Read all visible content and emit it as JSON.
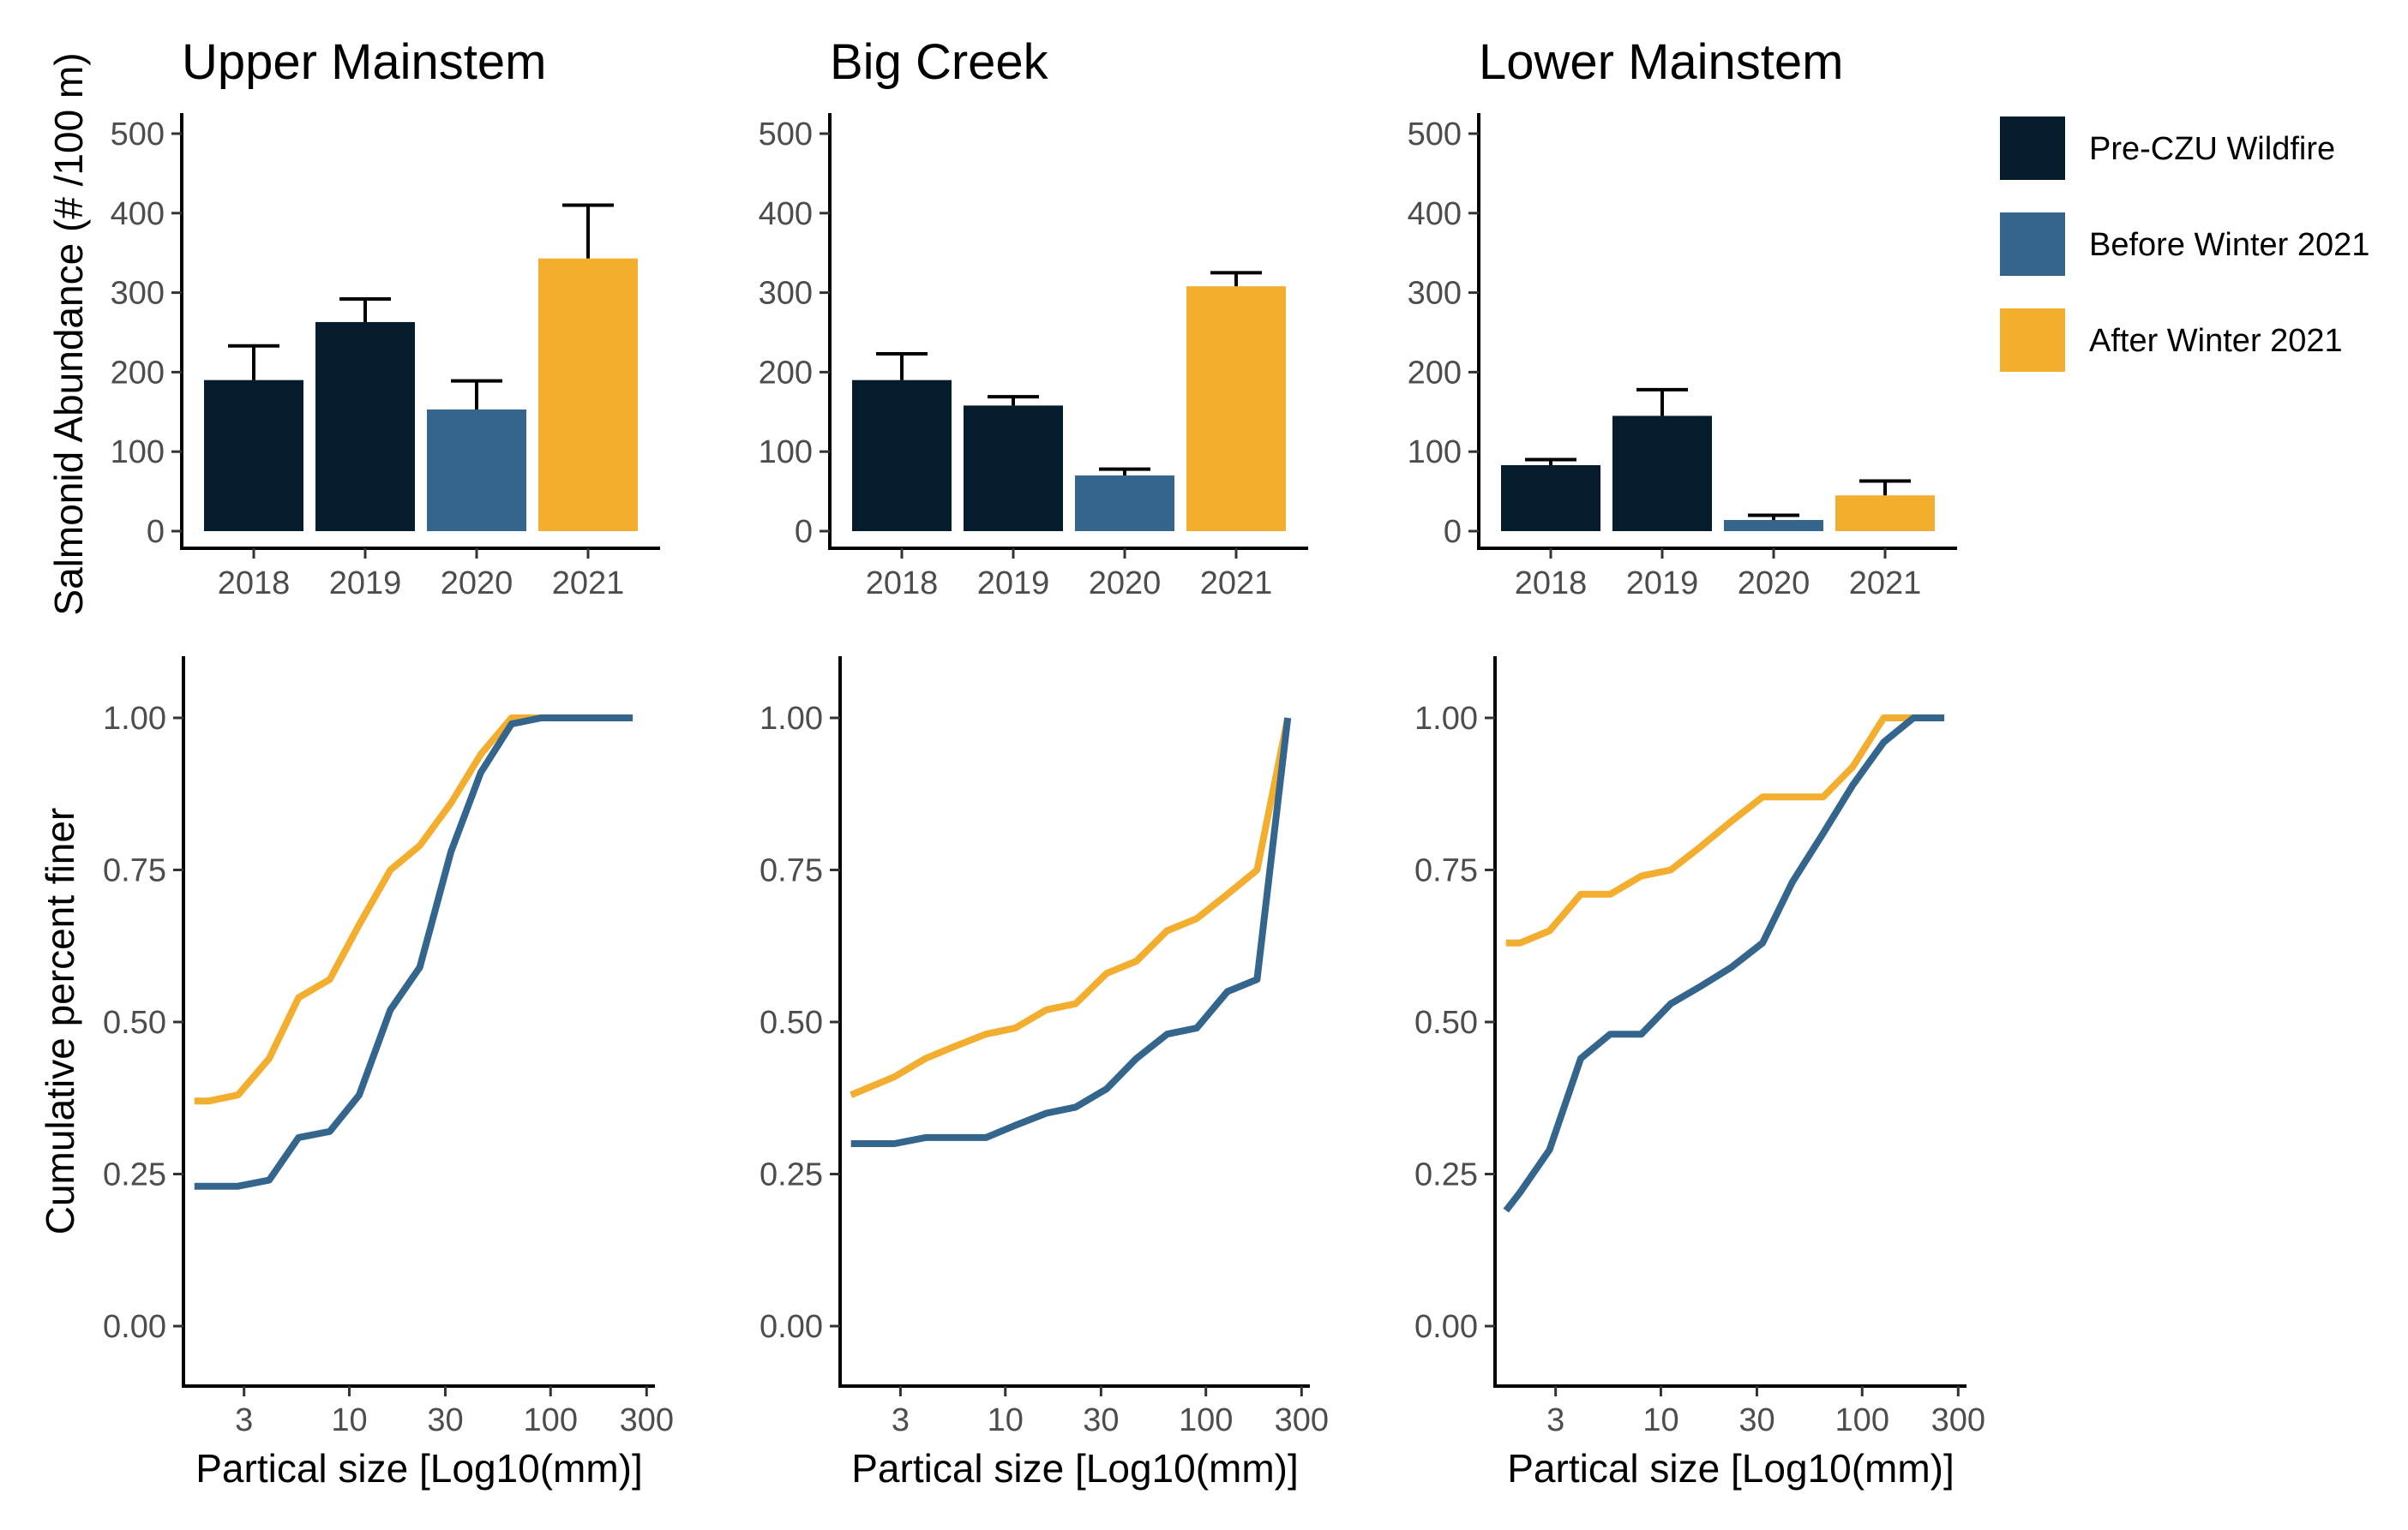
{
  "colors": {
    "pre": "#041c2c",
    "before": "#34658d",
    "after": "#f3ae2f"
  },
  "legend": [
    {
      "key": "pre",
      "label": "Pre-CZU Wildfire"
    },
    {
      "key": "before",
      "label": "Before Winter 2021"
    },
    {
      "key": "after",
      "label": "After Winter 2021"
    }
  ],
  "shared_labels": {
    "bar_ylabel": "Salmonid Abundance (# /100 m)",
    "curve_ylabel": "Cumulative percent finer",
    "curve_xlabel": "Partical size [Log10(mm)]"
  },
  "chart_data": [
    {
      "type": "bar",
      "title": "Upper Mainstem",
      "categories": [
        "2018",
        "2019",
        "2020",
        "2021"
      ],
      "values": [
        190,
        263,
        153,
        343
      ],
      "error_upper": [
        233,
        292,
        189,
        410
      ],
      "groups": [
        "pre",
        "pre",
        "before",
        "after"
      ],
      "ylabel": "Salmonid Abundance (# /100 m)",
      "ylim": [
        0,
        520
      ],
      "yticks": [
        0,
        100,
        200,
        300,
        400,
        500
      ]
    },
    {
      "type": "bar",
      "title": "Big Creek",
      "categories": [
        "2018",
        "2019",
        "2020",
        "2021"
      ],
      "values": [
        190,
        158,
        70,
        308
      ],
      "error_upper": [
        223,
        169,
        78,
        325
      ],
      "groups": [
        "pre",
        "pre",
        "before",
        "after"
      ],
      "ylim": [
        0,
        520
      ],
      "yticks": [
        0,
        100,
        200,
        300,
        400,
        500
      ]
    },
    {
      "type": "bar",
      "title": "Lower Mainstem",
      "categories": [
        "2018",
        "2019",
        "2020",
        "2021"
      ],
      "values": [
        83,
        145,
        14,
        45
      ],
      "error_upper": [
        90,
        178,
        20,
        63
      ],
      "groups": [
        "pre",
        "pre",
        "before",
        "after"
      ],
      "ylim": [
        0,
        520
      ],
      "yticks": [
        0,
        100,
        200,
        300,
        400,
        500
      ]
    },
    {
      "type": "line",
      "xscale": "log10",
      "xlabel": "Partical size [Log10(mm)]",
      "ylabel": "Cumulative percent finer",
      "xlim": [
        1.5,
        330
      ],
      "ylim": [
        -0.1,
        1.1
      ],
      "xticks": [
        3,
        10,
        30,
        100,
        300
      ],
      "yticks": [
        0.0,
        0.25,
        0.5,
        0.75,
        1.0
      ],
      "series": [
        {
          "key": "after",
          "x": [
            1.7,
            2.0,
            2.8,
            4.0,
            5.6,
            8.0,
            11.2,
            16.0,
            22.4,
            32.0,
            45.0,
            64.0,
            90.0,
            128.0,
            180.0,
            256.0
          ],
          "y": [
            0.37,
            0.37,
            0.38,
            0.44,
            0.54,
            0.57,
            0.66,
            0.75,
            0.79,
            0.86,
            0.94,
            1.0,
            1.0,
            1.0,
            1.0,
            1.0
          ]
        },
        {
          "key": "before",
          "x": [
            1.7,
            2.0,
            2.8,
            4.0,
            5.6,
            8.0,
            11.2,
            16.0,
            22.4,
            32.0,
            45.0,
            64.0,
            90.0,
            128.0,
            180.0,
            256.0
          ],
          "y": [
            0.23,
            0.23,
            0.23,
            0.24,
            0.31,
            0.32,
            0.38,
            0.52,
            0.59,
            0.78,
            0.91,
            0.99,
            1.0,
            1.0,
            1.0,
            1.0
          ]
        }
      ]
    },
    {
      "type": "line",
      "xscale": "log10",
      "xlabel": "Partical size [Log10(mm)]",
      "xlim": [
        1.5,
        330
      ],
      "ylim": [
        -0.1,
        1.1
      ],
      "xticks": [
        3,
        10,
        30,
        100,
        300
      ],
      "yticks": [
        0.0,
        0.25,
        0.5,
        0.75,
        1.0
      ],
      "series": [
        {
          "key": "after",
          "x": [
            1.7,
            2.8,
            4.0,
            5.6,
            8.0,
            11.2,
            16.0,
            22.4,
            32.0,
            45.0,
            64.0,
            90.0,
            128.0,
            180.0,
            256.0
          ],
          "y": [
            0.38,
            0.41,
            0.44,
            0.46,
            0.48,
            0.49,
            0.52,
            0.53,
            0.58,
            0.6,
            0.65,
            0.67,
            0.71,
            0.75,
            1.0
          ]
        },
        {
          "key": "before",
          "x": [
            1.7,
            2.8,
            4.0,
            5.6,
            8.0,
            11.2,
            16.0,
            22.4,
            32.0,
            45.0,
            64.0,
            90.0,
            128.0,
            180.0,
            256.0
          ],
          "y": [
            0.3,
            0.3,
            0.31,
            0.31,
            0.31,
            0.33,
            0.35,
            0.36,
            0.39,
            0.44,
            0.48,
            0.49,
            0.55,
            0.57,
            1.0
          ]
        }
      ]
    },
    {
      "type": "line",
      "xscale": "log10",
      "xlabel": "Partical size [Log10(mm)]",
      "xlim": [
        1.5,
        330
      ],
      "ylim": [
        -0.1,
        1.1
      ],
      "xticks": [
        3,
        10,
        30,
        100,
        300
      ],
      "yticks": [
        0.0,
        0.25,
        0.5,
        0.75,
        1.0
      ],
      "series": [
        {
          "key": "after",
          "x": [
            1.7,
            2.0,
            2.8,
            4.0,
            5.6,
            8.0,
            11.2,
            16.0,
            22.4,
            32.0,
            45.0,
            64.0,
            90.0,
            128.0,
            180.0,
            256.0
          ],
          "y": [
            0.63,
            0.63,
            0.65,
            0.71,
            0.71,
            0.74,
            0.75,
            0.79,
            0.83,
            0.87,
            0.87,
            0.87,
            0.92,
            1.0,
            1.0,
            1.0
          ]
        },
        {
          "key": "before",
          "x": [
            1.7,
            2.0,
            2.8,
            4.0,
            5.6,
            8.0,
            11.2,
            16.0,
            22.4,
            32.0,
            45.0,
            64.0,
            90.0,
            128.0,
            180.0,
            256.0
          ],
          "y": [
            0.19,
            0.22,
            0.29,
            0.44,
            0.48,
            0.48,
            0.53,
            0.56,
            0.59,
            0.63,
            0.73,
            0.81,
            0.89,
            0.96,
            1.0,
            1.0
          ]
        }
      ]
    }
  ]
}
